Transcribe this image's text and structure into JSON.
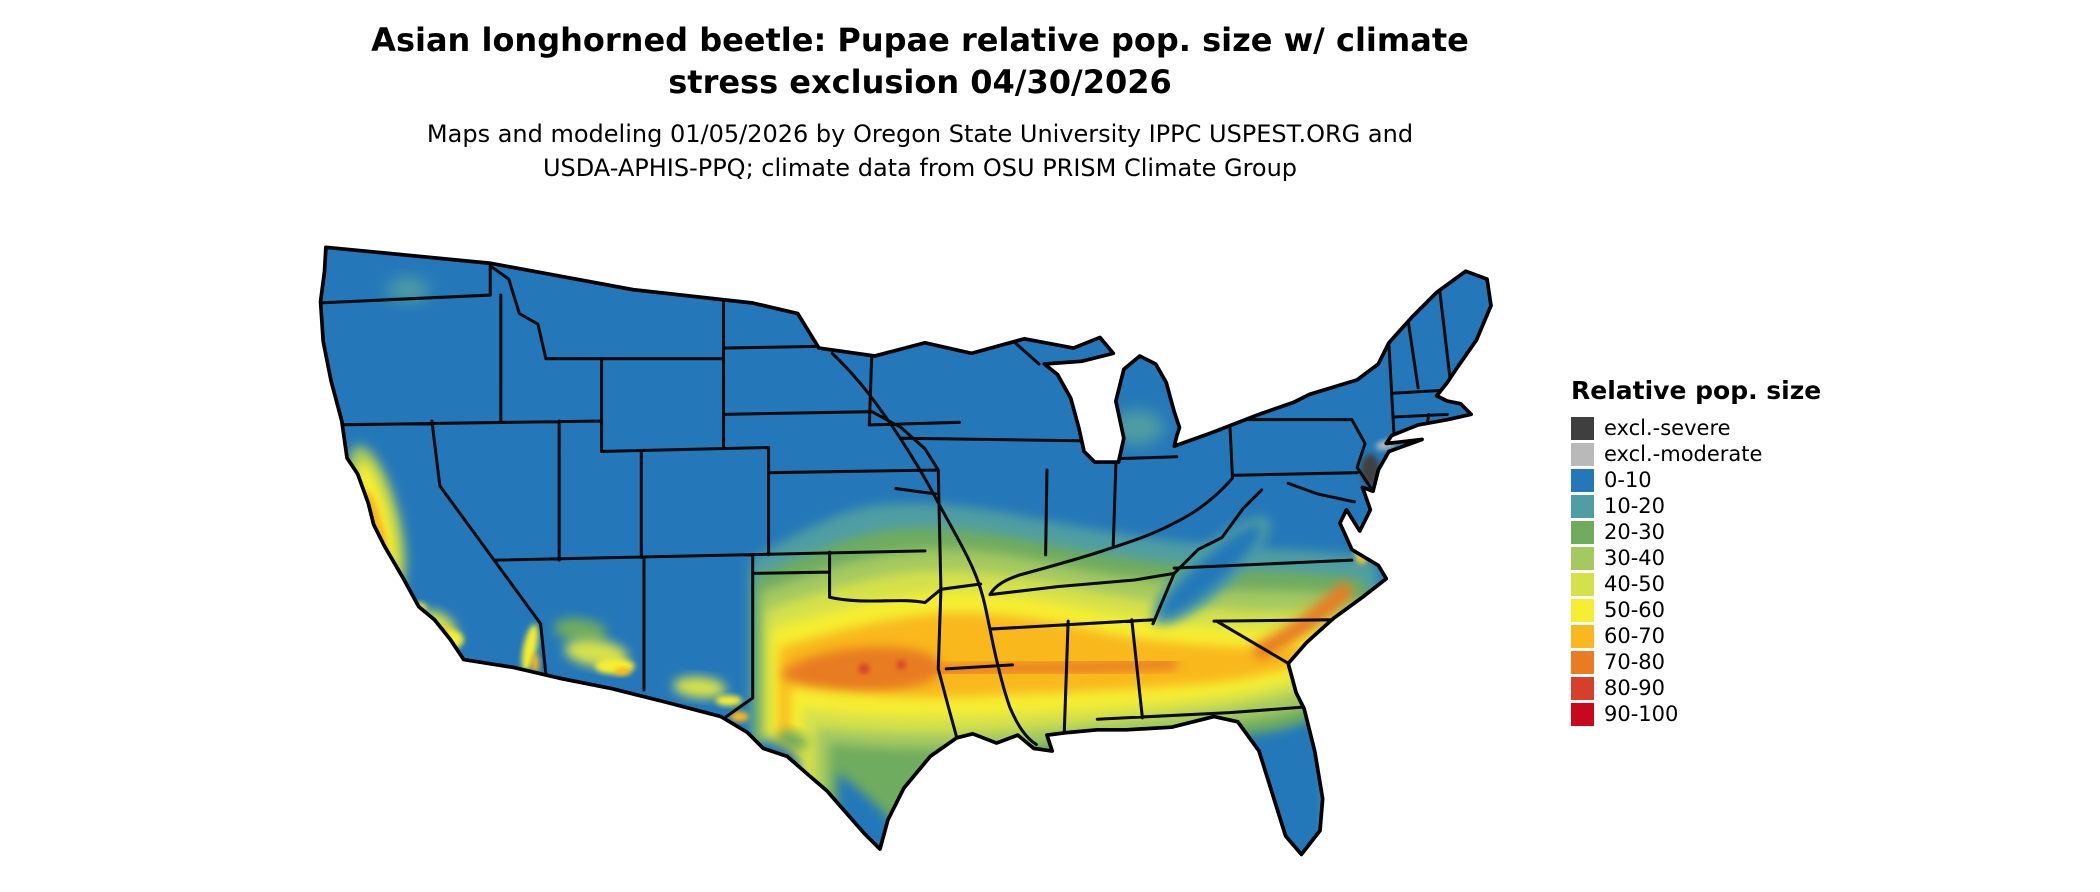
{
  "title": {
    "line1": "Asian longhorned beetle: Pupae relative pop. size w/ climate",
    "line2": "stress exclusion 04/30/2026"
  },
  "subtitle": {
    "line1": "Maps and modeling 01/05/2026 by Oregon State University IPPC USPEST.ORG and",
    "line2": "USDA-APHIS-PPQ; climate data from OSU PRISM Climate Group"
  },
  "legend": {
    "title": "Relative pop. size",
    "items": [
      {
        "label": "excl.-severe",
        "color": "#3f3f3f"
      },
      {
        "label": "excl.-moderate",
        "color": "#b9b9b9"
      },
      {
        "label": "0-10",
        "color": "#2478b9"
      },
      {
        "label": "10-20",
        "color": "#4f9ea3"
      },
      {
        "label": "20-30",
        "color": "#6fac5e"
      },
      {
        "label": "30-40",
        "color": "#a4c961"
      },
      {
        "label": "40-50",
        "color": "#d5e14b"
      },
      {
        "label": "50-60",
        "color": "#f6ee33"
      },
      {
        "label": "60-70",
        "color": "#f9b81f"
      },
      {
        "label": "70-80",
        "color": "#e87b23"
      },
      {
        "label": "80-90",
        "color": "#d6402a"
      },
      {
        "label": "90-100",
        "color": "#c8081c"
      }
    ]
  },
  "map": {
    "outline_color": "#000000",
    "background": "#ffffff"
  }
}
